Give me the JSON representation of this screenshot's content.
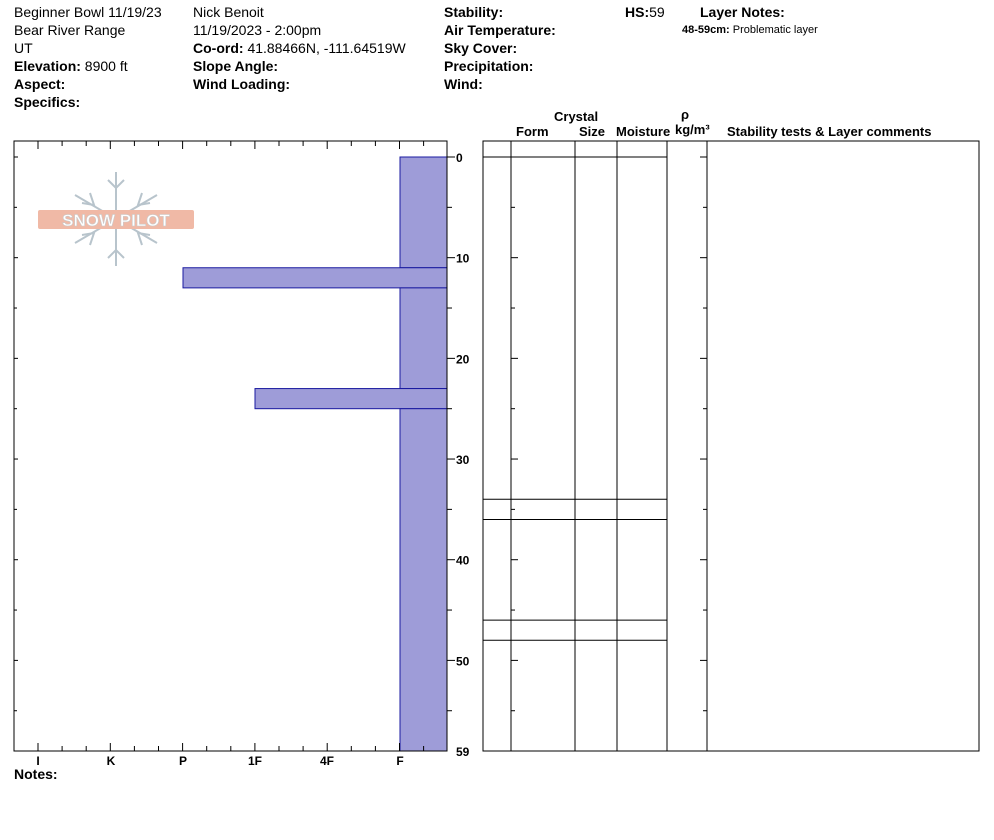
{
  "header": {
    "col1": {
      "location": "Beginner Bowl 11/19/23",
      "range": "Bear River Range",
      "state": "UT",
      "elevation_label": "Elevation:",
      "elevation_value": "8900 ft",
      "aspect_label": "Aspect:",
      "specifics_label": "Specifics:"
    },
    "col2": {
      "observer": "Nick Benoit",
      "datetime": "11/19/2023 - 2:00pm",
      "coord_label": "Co-ord:",
      "coord_value": "41.88466N, -111.64519W",
      "slope_label": "Slope Angle:",
      "wind_loading_label": "Wind Loading:"
    },
    "col3": {
      "stability_label": "Stability:",
      "air_temp_label": "Air Temperature:",
      "sky_cover_label": "Sky Cover:",
      "precip_label": "Precipitation:",
      "wind_label": "Wind:"
    },
    "hs_label": "HS:",
    "hs_value": "59",
    "layer_notes_label": "Layer Notes:",
    "layer_note_range": "48-59cm:",
    "layer_note_text": "Problematic layer"
  },
  "table_headers": {
    "crystal": "Crystal",
    "form": "Form",
    "size": "Size",
    "moisture": "Moisture",
    "rho": "ρ",
    "density_unit": "kg/m³",
    "comments": "Stability tests & Layer comments"
  },
  "logo_text": "SNOW PILOT",
  "notes_label": "Notes:",
  "colors": {
    "bar_fill": "#9e9cd8",
    "bar_stroke": "#1a1aa0",
    "logo": "#f0b9a6",
    "snowflake": "#b8c4cc"
  },
  "chart_data": {
    "type": "bar",
    "orientation": "horizontal",
    "x_categories": [
      "I",
      "K",
      "P",
      "1F",
      "4F",
      "F"
    ],
    "x_scale": [
      "I",
      "K",
      "P",
      "1F",
      "4F",
      "F",
      "F-"
    ],
    "y_ticks": [
      "0",
      "10",
      "20",
      "30",
      "40",
      "50",
      "59"
    ],
    "y_range": [
      0,
      59
    ],
    "layers": [
      {
        "top": 59,
        "bottom": 48,
        "hardness": "F"
      },
      {
        "top": 48,
        "bottom": 46,
        "hardness": "P"
      },
      {
        "top": 46,
        "bottom": 36,
        "hardness": "F"
      },
      {
        "top": 36,
        "bottom": 34,
        "hardness": "1F"
      },
      {
        "top": 34,
        "bottom": 0,
        "hardness": "F"
      }
    ],
    "layer_boundaries": [
      34,
      36,
      46,
      48
    ]
  }
}
